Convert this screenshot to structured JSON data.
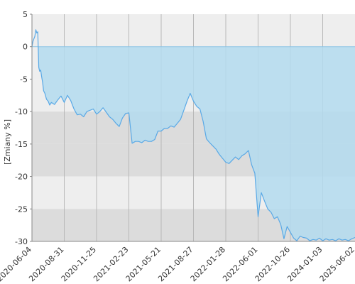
{
  "chart_data": {
    "type": "area",
    "ylabel": "[Zmiany %]",
    "ylim": [
      -30,
      5
    ],
    "yticks": [
      5,
      0,
      -5,
      -10,
      -15,
      -20,
      -25,
      -30
    ],
    "xlim": [
      "2020-06-04",
      "2025-06-02"
    ],
    "xticks": [
      "2020-06-04",
      "2020-08-31",
      "2020-11-25",
      "2021-02-23",
      "2021-05-21",
      "2021-08-27",
      "2022-01-28",
      "2022-06-01",
      "2022-10-26",
      "2024-01-03",
      "2025-06-02"
    ],
    "grid": true,
    "colors": {
      "line": "#5aa9e6",
      "fill_negative": "#b3dbef",
      "band_light": "#eeeeee",
      "band_dark": "#dcdcdc",
      "gridline": "#b8b8b8"
    },
    "series": [
      {
        "x": [
          0,
          0.3,
          0.6,
          0.9,
          1.2,
          1.5,
          1.8,
          2.1,
          2.4,
          2.7,
          3.0,
          3.3,
          3.6,
          4.0,
          4.5,
          5.0,
          5.5,
          6,
          7,
          8,
          9,
          10,
          11,
          12,
          13,
          14,
          15,
          16,
          17,
          18,
          19,
          20,
          21,
          22,
          23,
          24,
          25,
          26,
          27,
          28,
          29,
          30,
          31,
          32,
          33,
          34,
          35,
          36,
          37,
          38,
          39,
          40,
          41,
          42,
          43,
          44,
          45,
          46,
          47,
          48,
          49,
          50,
          51,
          52,
          53,
          54,
          55,
          56,
          57,
          58,
          59,
          60,
          61,
          62,
          63,
          64,
          65,
          66,
          67,
          68,
          69,
          70,
          71,
          72,
          73,
          74,
          75,
          76,
          77,
          78,
          79,
          80,
          81,
          82,
          83,
          84,
          85,
          86,
          87,
          88,
          89,
          90,
          91,
          92,
          93,
          94,
          95,
          96,
          97,
          98,
          99,
          100
        ],
        "y": [
          0,
          0.8,
          1.2,
          1.6,
          2.6,
          2.1,
          2.3,
          -3.2,
          -3.8,
          -3.6,
          -4.6,
          -5.5,
          -6.8,
          -7.2,
          -8.1,
          -8.4,
          -9.0,
          -8.6,
          -8.9,
          -8.2,
          -7.6,
          -8.6,
          -7.5,
          -8.3,
          -9.6,
          -10.5,
          -10.4,
          -10.8,
          -10.0,
          -9.8,
          -9.6,
          -10.4,
          -10.0,
          -9.4,
          -10.1,
          -10.8,
          -11.2,
          -11.8,
          -12.3,
          -11.0,
          -10.3,
          -10.2,
          -14.9,
          -14.6,
          -14.6,
          -14.8,
          -14.4,
          -14.6,
          -14.6,
          -14.3,
          -13.0,
          -13.0,
          -12.6,
          -12.6,
          -12.2,
          -12.4,
          -11.8,
          -11.2,
          -9.8,
          -8.4,
          -7.2,
          -8.4,
          -9.2,
          -9.6,
          -11.5,
          -14.2,
          -14.8,
          -15.3,
          -15.8,
          -16.6,
          -17.2,
          -17.8,
          -18.0,
          -17.5,
          -17.0,
          -17.4,
          -16.8,
          -16.5,
          -16.0,
          -18.2,
          -19.5,
          -26.2,
          -22.5,
          -23.8,
          -25.0,
          -25.5,
          -26.5,
          -26.2,
          -27.4,
          -29.6,
          -27.7,
          -28.6,
          -29.5,
          -29.9,
          -29.2,
          -29.4,
          -29.5,
          -29.9,
          -29.7,
          -29.8,
          -29.5,
          -29.9,
          -29.6,
          -29.8,
          -29.7,
          -29.9,
          -29.6,
          -29.8,
          -29.7,
          -29.9,
          -29.6,
          -29.4
        ]
      }
    ]
  }
}
